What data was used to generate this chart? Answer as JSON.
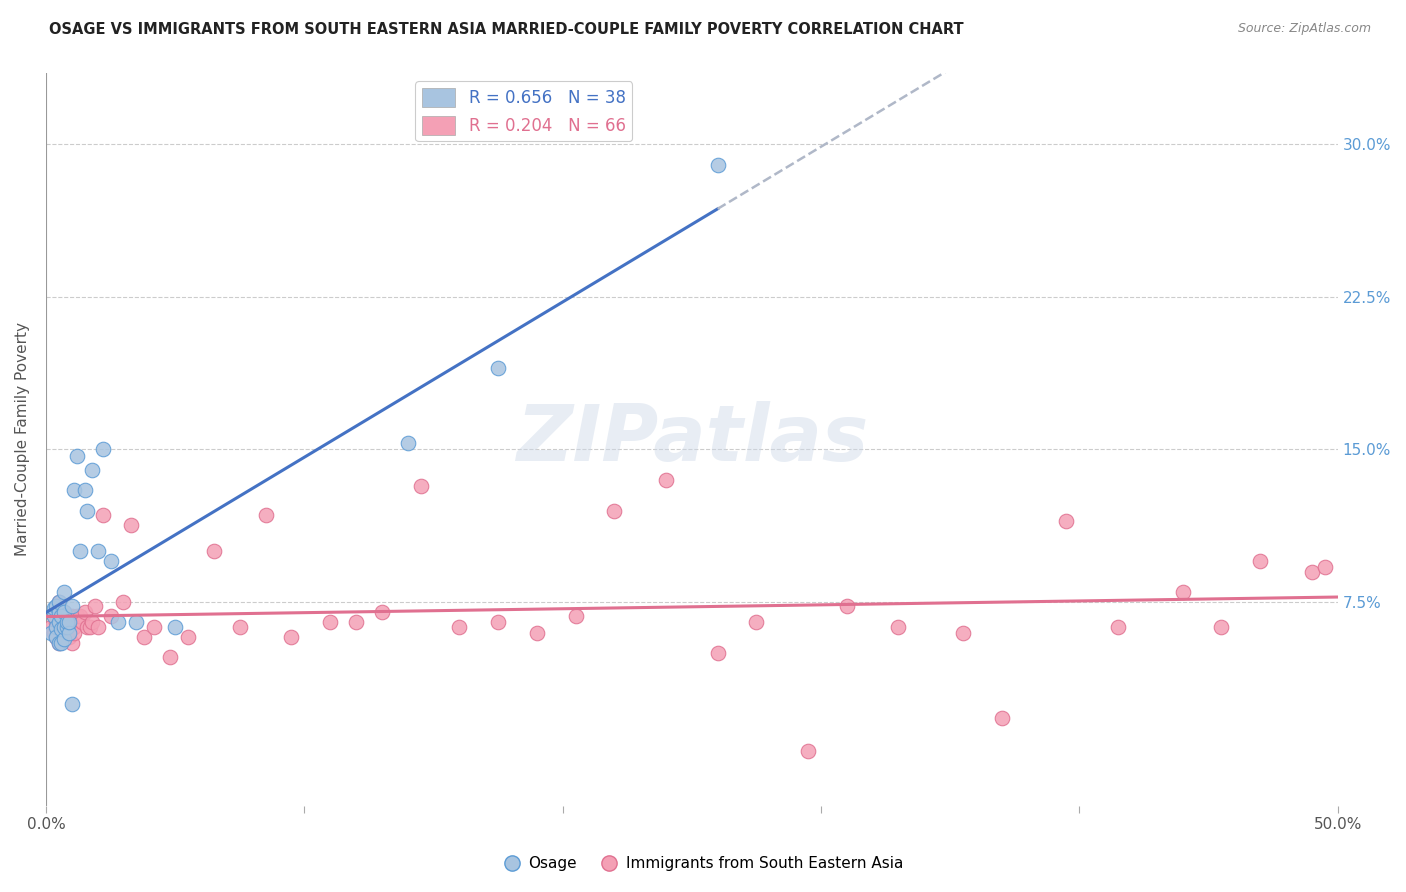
{
  "title": "OSAGE VS IMMIGRANTS FROM SOUTH EASTERN ASIA MARRIED-COUPLE FAMILY POVERTY CORRELATION CHART",
  "source": "Source: ZipAtlas.com",
  "ylabel": "Married-Couple Family Poverty",
  "xmin": 0.0,
  "xmax": 0.5,
  "ymin": -0.025,
  "ymax": 0.335,
  "watermark": "ZIPatlas",
  "legend_label_blue": "R = 0.656   N = 38",
  "legend_label_pink": "R = 0.204   N = 66",
  "legend_bottom_blue": "Osage",
  "legend_bottom_pink": "Immigrants from South Eastern Asia",
  "color_blue": "#a8c4e0",
  "color_pink": "#f4a0b5",
  "color_blue_line": "#5b9bd5",
  "color_blue_line_dark": "#4472c4",
  "color_pink_line": "#e07090",
  "color_dash": "#b0b8c8",
  "osage_x": [
    0.002,
    0.003,
    0.003,
    0.004,
    0.004,
    0.004,
    0.005,
    0.005,
    0.005,
    0.005,
    0.006,
    0.006,
    0.006,
    0.007,
    0.007,
    0.007,
    0.007,
    0.008,
    0.008,
    0.009,
    0.009,
    0.01,
    0.01,
    0.011,
    0.012,
    0.013,
    0.015,
    0.016,
    0.018,
    0.02,
    0.022,
    0.025,
    0.028,
    0.035,
    0.05,
    0.14,
    0.175,
    0.26
  ],
  "osage_y": [
    0.06,
    0.068,
    0.072,
    0.063,
    0.058,
    0.073,
    0.055,
    0.07,
    0.065,
    0.075,
    0.055,
    0.062,
    0.068,
    0.057,
    0.063,
    0.07,
    0.08,
    0.063,
    0.065,
    0.06,
    0.065,
    0.025,
    0.073,
    0.13,
    0.147,
    0.1,
    0.13,
    0.12,
    0.14,
    0.1,
    0.15,
    0.095,
    0.065,
    0.065,
    0.063,
    0.153,
    0.19,
    0.29
  ],
  "sea_x": [
    0.002,
    0.003,
    0.003,
    0.004,
    0.004,
    0.005,
    0.005,
    0.005,
    0.006,
    0.006,
    0.006,
    0.007,
    0.007,
    0.008,
    0.008,
    0.009,
    0.009,
    0.01,
    0.01,
    0.011,
    0.011,
    0.012,
    0.013,
    0.014,
    0.015,
    0.016,
    0.017,
    0.018,
    0.019,
    0.02,
    0.022,
    0.025,
    0.03,
    0.033,
    0.038,
    0.042,
    0.048,
    0.055,
    0.065,
    0.075,
    0.085,
    0.095,
    0.11,
    0.12,
    0.13,
    0.145,
    0.16,
    0.175,
    0.19,
    0.205,
    0.22,
    0.24,
    0.26,
    0.275,
    0.295,
    0.31,
    0.33,
    0.355,
    0.37,
    0.395,
    0.415,
    0.44,
    0.455,
    0.47,
    0.49,
    0.495
  ],
  "sea_y": [
    0.063,
    0.06,
    0.068,
    0.058,
    0.065,
    0.055,
    0.063,
    0.075,
    0.06,
    0.058,
    0.068,
    0.065,
    0.07,
    0.063,
    0.06,
    0.058,
    0.068,
    0.055,
    0.068,
    0.063,
    0.06,
    0.068,
    0.068,
    0.065,
    0.07,
    0.063,
    0.063,
    0.065,
    0.073,
    0.063,
    0.118,
    0.068,
    0.075,
    0.113,
    0.058,
    0.063,
    0.048,
    0.058,
    0.1,
    0.063,
    0.118,
    0.058,
    0.065,
    0.065,
    0.07,
    0.132,
    0.063,
    0.065,
    0.06,
    0.068,
    0.12,
    0.135,
    0.05,
    0.065,
    0.002,
    0.073,
    0.063,
    0.06,
    0.018,
    0.115,
    0.063,
    0.08,
    0.063,
    0.095,
    0.09,
    0.092
  ]
}
